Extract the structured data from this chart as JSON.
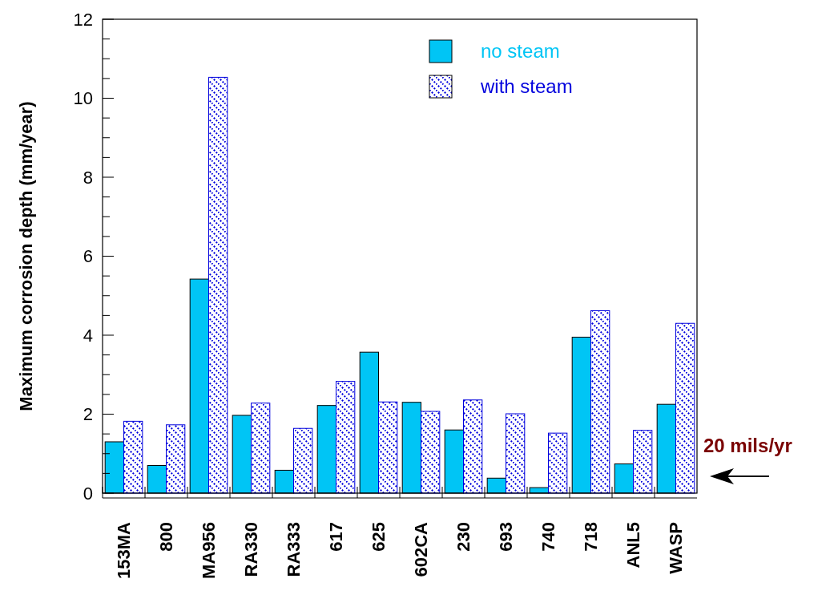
{
  "chart_data": {
    "type": "bar",
    "ylabel": "Maximum corrosion depth (mm/year)",
    "categories": [
      "153MA",
      "800",
      "MA956",
      "RA330",
      "RA333",
      "617",
      "625",
      "602CA",
      "230",
      "693",
      "740",
      "718",
      "ANL5",
      "WASP"
    ],
    "series": [
      {
        "name": "no steam",
        "color": "#00c5f5",
        "values": [
          1.3,
          0.7,
          5.42,
          1.97,
          0.58,
          2.22,
          3.57,
          2.3,
          1.6,
          0.38,
          0.14,
          3.95,
          0.74,
          2.25
        ]
      },
      {
        "name": "with steam",
        "color": "#0000dd",
        "values": [
          1.82,
          1.73,
          10.53,
          2.28,
          1.64,
          2.83,
          2.31,
          2.07,
          2.36,
          2.01,
          1.52,
          4.62,
          1.59,
          4.3
        ]
      }
    ],
    "ylim": [
      0,
      12
    ],
    "yticks": [
      0,
      {
        "value": 0.5,
        "label": null
      },
      2,
      {
        "value": 1,
        "label": null
      },
      {
        "value": 1.5,
        "label": null
      },
      {
        "value": 2.5,
        "label": null
      },
      {
        "value": 3,
        "label": null
      },
      {
        "value": 3.5,
        "label": null
      },
      4,
      {
        "value": 4.5,
        "label": null
      },
      {
        "value": 5,
        "label": null
      },
      {
        "value": 5.5,
        "label": null
      },
      6,
      {
        "value": 6.5,
        "label": null
      },
      {
        "value": 7,
        "label": null
      },
      {
        "value": 7.5,
        "label": null
      },
      8,
      {
        "value": 8.5,
        "label": null
      },
      {
        "value": 9,
        "label": null
      },
      {
        "value": 9.5,
        "label": null
      },
      10,
      {
        "value": 10.5,
        "label": null
      },
      {
        "value": 11,
        "label": null
      },
      {
        "value": 11.5,
        "label": null
      },
      12
    ],
    "legend": "top right",
    "annotations": [
      "20 mils/yr"
    ]
  }
}
